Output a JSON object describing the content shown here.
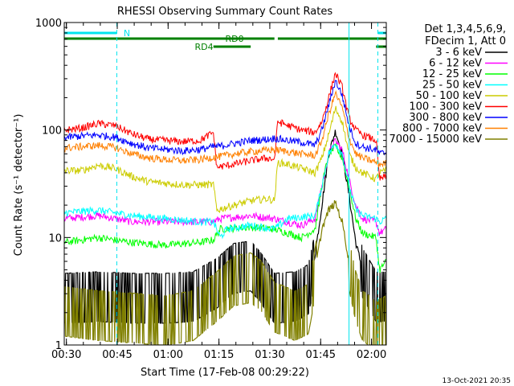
{
  "chart_data": {
    "type": "line",
    "title": "RHESSI Observing Summary Count Rates",
    "xlabel": "Start Time (17-Feb-08 00:29:22)",
    "ylabel": "Count Rate (s⁻¹ detector⁻¹)",
    "yscale": "log",
    "ylim": [
      1,
      1000
    ],
    "xlim_minutes": [
      0,
      95
    ],
    "x_tick_labels": [
      "00:30",
      "00:45",
      "01:00",
      "01:15",
      "01:30",
      "01:45",
      "02:00"
    ],
    "y_tick_labels": [
      "1",
      "10",
      "100",
      "1000"
    ],
    "legend_header": [
      "Det 1,3,4,5,6,9,",
      "FDecim 1, Att 0"
    ],
    "legend_position": "right",
    "timestamp": "13-Oct-2021 20:35",
    "state_bars": {
      "N_label": "N",
      "RD0_label": "RD0",
      "RD4_label": "RD4",
      "cyan_color": "#00e5ee",
      "green_color": "#008000"
    },
    "markers": {
      "dashed_minutes": [
        15.5,
        92.5
      ],
      "solid_minutes": [
        84.0
      ],
      "color": "#00e5ee"
    },
    "series": [
      {
        "name": "3 - 6 keV",
        "color": "#000000",
        "points": [
          [
            0,
            2.9
          ],
          [
            10,
            3.0
          ],
          [
            20,
            2.9
          ],
          [
            30,
            2.9
          ],
          [
            38,
            3.0
          ],
          [
            45,
            4.0
          ],
          [
            50,
            5.5
          ],
          [
            55,
            5.8
          ],
          [
            58,
            4.5
          ],
          [
            62,
            2.9
          ],
          [
            68,
            3.0
          ],
          [
            72,
            3.5
          ],
          [
            74,
            7
          ],
          [
            76,
            20
          ],
          [
            78,
            60
          ],
          [
            80,
            98
          ],
          [
            82,
            60
          ],
          [
            84,
            25
          ],
          [
            86,
            9
          ],
          [
            88,
            5
          ],
          [
            92,
            3.0
          ],
          [
            95,
            3.0
          ]
        ]
      },
      {
        "name": "6 - 12 keV",
        "color": "#ff00ff",
        "points": [
          [
            0,
            15
          ],
          [
            10,
            16
          ],
          [
            20,
            14
          ],
          [
            30,
            14
          ],
          [
            40,
            14
          ],
          [
            44,
            14
          ],
          [
            46,
            15
          ],
          [
            55,
            16
          ],
          [
            62,
            15
          ],
          [
            70,
            13
          ],
          [
            74,
            15
          ],
          [
            76,
            30
          ],
          [
            78,
            60
          ],
          [
            80,
            80
          ],
          [
            82,
            65
          ],
          [
            84,
            35
          ],
          [
            86,
            20
          ],
          [
            88,
            15
          ],
          [
            92,
            14
          ],
          [
            93,
            11
          ],
          [
            95,
            12
          ]
        ]
      },
      {
        "name": "12 - 25 keV",
        "color": "#00ff00",
        "points": [
          [
            0,
            9
          ],
          [
            10,
            10
          ],
          [
            20,
            9
          ],
          [
            30,
            8.5
          ],
          [
            40,
            9
          ],
          [
            44,
            9.5
          ],
          [
            46,
            12
          ],
          [
            55,
            12.5
          ],
          [
            62,
            12
          ],
          [
            66,
            11
          ],
          [
            70,
            10
          ],
          [
            74,
            12
          ],
          [
            76,
            30
          ],
          [
            78,
            60
          ],
          [
            80,
            70
          ],
          [
            82,
            55
          ],
          [
            84,
            30
          ],
          [
            86,
            15
          ],
          [
            88,
            11
          ],
          [
            92,
            10
          ],
          [
            93,
            5
          ],
          [
            95,
            6
          ]
        ]
      },
      {
        "name": "25 - 50 keV",
        "color": "#00ffff",
        "points": [
          [
            0,
            17
          ],
          [
            10,
            18
          ],
          [
            20,
            16
          ],
          [
            30,
            15
          ],
          [
            40,
            14
          ],
          [
            44,
            14
          ],
          [
            46,
            10
          ],
          [
            48,
            12
          ],
          [
            55,
            13
          ],
          [
            62,
            12
          ],
          [
            66,
            15
          ],
          [
            74,
            16
          ],
          [
            76,
            30
          ],
          [
            78,
            60
          ],
          [
            80,
            75
          ],
          [
            82,
            60
          ],
          [
            84,
            30
          ],
          [
            86,
            18
          ],
          [
            88,
            16
          ],
          [
            92,
            15
          ],
          [
            93,
            14
          ],
          [
            95,
            15
          ]
        ]
      },
      {
        "name": "50 - 100 keV",
        "color": "#cccc00",
        "points": [
          [
            0,
            42
          ],
          [
            5,
            42
          ],
          [
            10,
            47
          ],
          [
            15,
            44
          ],
          [
            20,
            37
          ],
          [
            25,
            33
          ],
          [
            30,
            32
          ],
          [
            35,
            31
          ],
          [
            40,
            31
          ],
          [
            44,
            31
          ],
          [
            45,
            18
          ],
          [
            50,
            20
          ],
          [
            55,
            22
          ],
          [
            60,
            23
          ],
          [
            62,
            22
          ],
          [
            63,
            50
          ],
          [
            66,
            48
          ],
          [
            70,
            44
          ],
          [
            74,
            40
          ],
          [
            76,
            55
          ],
          [
            78,
            90
          ],
          [
            80,
            160
          ],
          [
            82,
            120
          ],
          [
            84,
            60
          ],
          [
            86,
            45
          ],
          [
            88,
            40
          ],
          [
            92,
            35
          ],
          [
            93,
            40
          ],
          [
            95,
            42
          ]
        ]
      },
      {
        "name": "100 - 300 keV",
        "color": "#ff0000",
        "points": [
          [
            0,
            100
          ],
          [
            5,
            104
          ],
          [
            10,
            115
          ],
          [
            15,
            110
          ],
          [
            20,
            92
          ],
          [
            25,
            82
          ],
          [
            30,
            80
          ],
          [
            35,
            78
          ],
          [
            40,
            80
          ],
          [
            44,
            95
          ],
          [
            45,
            45
          ],
          [
            50,
            48
          ],
          [
            55,
            52
          ],
          [
            60,
            55
          ],
          [
            62,
            53
          ],
          [
            63,
            120
          ],
          [
            66,
            110
          ],
          [
            70,
            100
          ],
          [
            74,
            95
          ],
          [
            76,
            120
          ],
          [
            78,
            200
          ],
          [
            80,
            340
          ],
          [
            82,
            250
          ],
          [
            84,
            130
          ],
          [
            86,
            100
          ],
          [
            88,
            90
          ],
          [
            92,
            80
          ],
          [
            93,
            35
          ],
          [
            95,
            37
          ]
        ]
      },
      {
        "name": "300 - 800 keV",
        "color": "#0000ff",
        "points": [
          [
            0,
            85
          ],
          [
            5,
            88
          ],
          [
            10,
            90
          ],
          [
            15,
            86
          ],
          [
            20,
            75
          ],
          [
            25,
            68
          ],
          [
            30,
            66
          ],
          [
            35,
            64
          ],
          [
            40,
            66
          ],
          [
            44,
            70
          ],
          [
            45,
            70
          ],
          [
            50,
            75
          ],
          [
            55,
            80
          ],
          [
            60,
            82
          ],
          [
            62,
            84
          ],
          [
            66,
            80
          ],
          [
            70,
            77
          ],
          [
            74,
            72
          ],
          [
            76,
            100
          ],
          [
            78,
            170
          ],
          [
            80,
            290
          ],
          [
            82,
            210
          ],
          [
            84,
            110
          ],
          [
            86,
            75
          ],
          [
            88,
            70
          ],
          [
            92,
            65
          ],
          [
            93,
            60
          ],
          [
            95,
            62
          ]
        ]
      },
      {
        "name": "800 - 7000 keV",
        "color": "#ff8000",
        "points": [
          [
            0,
            68
          ],
          [
            5,
            70
          ],
          [
            10,
            72
          ],
          [
            15,
            69
          ],
          [
            20,
            60
          ],
          [
            25,
            55
          ],
          [
            30,
            53
          ],
          [
            35,
            52
          ],
          [
            40,
            53
          ],
          [
            44,
            56
          ],
          [
            45,
            56
          ],
          [
            50,
            60
          ],
          [
            55,
            63
          ],
          [
            60,
            65
          ],
          [
            62,
            66
          ],
          [
            66,
            63
          ],
          [
            70,
            60
          ],
          [
            74,
            58
          ],
          [
            76,
            80
          ],
          [
            78,
            140
          ],
          [
            80,
            220
          ],
          [
            82,
            160
          ],
          [
            84,
            85
          ],
          [
            86,
            60
          ],
          [
            88,
            55
          ],
          [
            92,
            50
          ],
          [
            93,
            48
          ],
          [
            95,
            49
          ]
        ]
      },
      {
        "name": "7000 - 15000 keV",
        "color": "#808000",
        "points": [
          [
            0,
            2.2
          ],
          [
            10,
            2.0
          ],
          [
            20,
            1.9
          ],
          [
            30,
            1.8
          ],
          [
            38,
            2.0
          ],
          [
            45,
            3.0
          ],
          [
            50,
            4.2
          ],
          [
            55,
            4.5
          ],
          [
            58,
            3.8
          ],
          [
            62,
            2.4
          ],
          [
            68,
            2.0
          ],
          [
            72,
            2.3
          ],
          [
            74,
            5
          ],
          [
            76,
            12
          ],
          [
            78,
            18
          ],
          [
            80,
            21
          ],
          [
            82,
            14
          ],
          [
            84,
            6
          ],
          [
            86,
            3
          ],
          [
            88,
            2
          ],
          [
            92,
            1.6
          ],
          [
            95,
            1.8
          ]
        ]
      }
    ]
  }
}
